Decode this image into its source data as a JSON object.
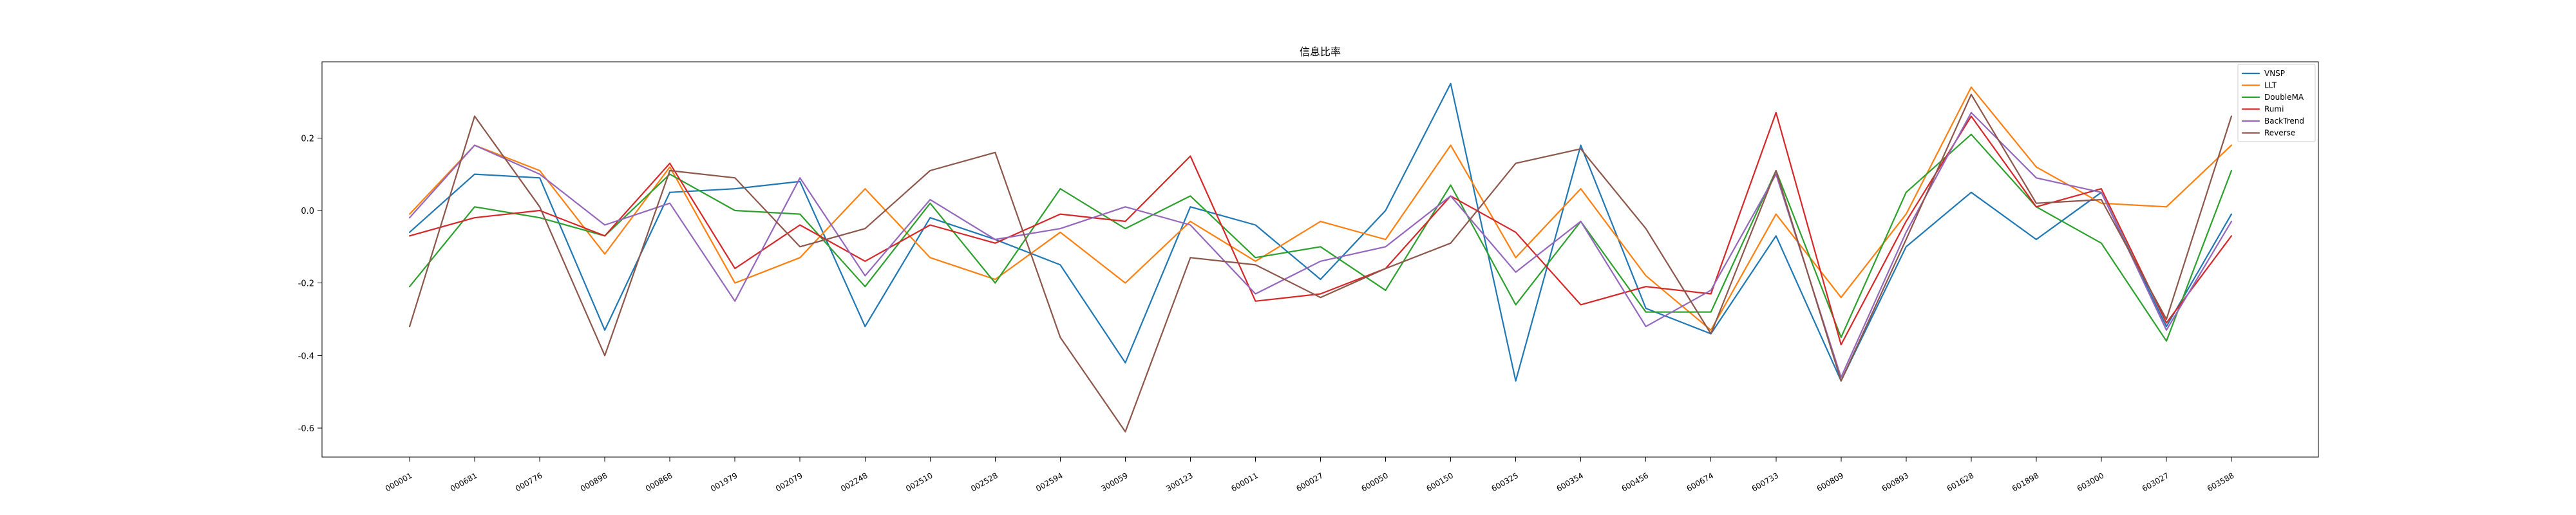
{
  "chart_data": {
    "type": "line",
    "title": "信息比率",
    "xlabel": "",
    "ylabel": "",
    "ylim": [
      -0.68,
      0.41
    ],
    "yticks": [
      "0.2",
      "0.0",
      "-0.2",
      "-0.4",
      "-0.6"
    ],
    "ytick_values": [
      0.2,
      0.0,
      -0.2,
      -0.4,
      -0.6
    ],
    "categories": [
      "000001",
      "000681",
      "000776",
      "000898",
      "000868",
      "001979",
      "002079",
      "002248",
      "002510",
      "002528",
      "002594",
      "300059",
      "300123",
      "600011",
      "600027",
      "600050",
      "600150",
      "600325",
      "600354",
      "600456",
      "600674",
      "600733",
      "600809",
      "600893",
      "601628",
      "601898",
      "603000",
      "603027",
      "603588"
    ],
    "grid": false,
    "legend_position": "top-right",
    "series": [
      {
        "name": "VNSP",
        "color": "#1f77b4",
        "values": [
          -0.06,
          0.1,
          0.09,
          -0.33,
          0.05,
          0.06,
          0.08,
          -0.32,
          -0.02,
          -0.08,
          -0.15,
          -0.42,
          0.01,
          -0.04,
          -0.19,
          0.0,
          0.35,
          -0.47,
          0.18,
          -0.27,
          -0.34,
          -0.07,
          -0.47,
          -0.1,
          0.05,
          -0.08,
          0.05,
          -0.32,
          -0.01
        ]
      },
      {
        "name": "LLT",
        "color": "#ff7f0e",
        "values": [
          -0.01,
          0.18,
          0.11,
          -0.12,
          0.12,
          -0.2,
          -0.13,
          0.06,
          -0.13,
          -0.19,
          -0.06,
          -0.2,
          -0.03,
          -0.14,
          -0.03,
          -0.08,
          0.18,
          -0.13,
          0.06,
          -0.18,
          -0.33,
          -0.01,
          -0.24,
          -0.01,
          0.34,
          0.12,
          0.02,
          0.01,
          0.18
        ]
      },
      {
        "name": "DoubleMA",
        "color": "#2ca02c",
        "values": [
          -0.21,
          0.01,
          -0.02,
          -0.07,
          0.1,
          0.0,
          -0.01,
          -0.21,
          0.02,
          -0.2,
          0.06,
          -0.05,
          0.04,
          -0.13,
          -0.1,
          -0.22,
          0.07,
          -0.26,
          -0.03,
          -0.28,
          -0.28,
          0.11,
          -0.35,
          0.05,
          0.21,
          0.01,
          -0.09,
          -0.36,
          0.11
        ]
      },
      {
        "name": "Rumi",
        "color": "#d62728",
        "values": [
          -0.07,
          -0.02,
          0.0,
          -0.07,
          0.13,
          -0.16,
          -0.04,
          -0.14,
          -0.04,
          -0.09,
          -0.01,
          -0.03,
          0.15,
          -0.25,
          -0.23,
          -0.16,
          0.04,
          -0.06,
          -0.26,
          -0.21,
          -0.23,
          0.27,
          -0.37,
          -0.03,
          0.26,
          0.01,
          0.06,
          -0.31,
          -0.07
        ]
      },
      {
        "name": "BackTrend",
        "color": "#9467bd",
        "values": [
          -0.02,
          0.18,
          0.1,
          -0.04,
          0.02,
          -0.25,
          0.09,
          -0.18,
          0.03,
          -0.08,
          -0.05,
          0.01,
          -0.04,
          -0.23,
          -0.14,
          -0.1,
          0.04,
          -0.17,
          -0.03,
          -0.32,
          -0.22,
          0.1,
          -0.46,
          -0.06,
          0.27,
          0.09,
          0.05,
          -0.33,
          -0.03
        ]
      },
      {
        "name": "Reverse",
        "color": "#8c564b",
        "values": [
          -0.32,
          0.26,
          0.01,
          -0.4,
          0.11,
          0.09,
          -0.1,
          -0.05,
          0.11,
          0.16,
          -0.35,
          -0.61,
          -0.13,
          -0.15,
          -0.24,
          -0.16,
          -0.09,
          0.13,
          0.17,
          -0.05,
          -0.34,
          0.11,
          -0.47,
          -0.08,
          0.32,
          0.02,
          0.03,
          -0.3,
          0.26
        ]
      }
    ]
  }
}
